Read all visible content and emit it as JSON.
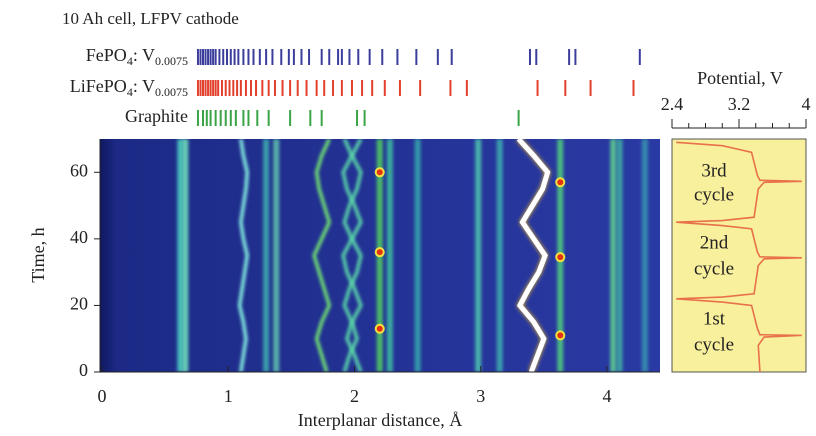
{
  "chart_data": [
    {
      "type": "heatmap",
      "title": "10 Ah cell, LFPV cathode",
      "xlabel": "Interplanar distance, Å",
      "ylabel": "Time, h",
      "xlim": [
        -0.016,
        4.42
      ],
      "ylim": [
        0,
        70
      ],
      "xticks": [
        0,
        1,
        2,
        3,
        4
      ],
      "yticks": [
        0,
        20,
        40,
        60
      ],
      "references": [
        {
          "label": [
            "FePO",
            "4",
            ": V",
            "0.0075"
          ],
          "color": "#3b3d9c",
          "values": [
            0.76,
            0.78,
            0.8,
            0.82,
            0.84,
            0.86,
            0.88,
            0.9,
            0.93,
            0.96,
            0.99,
            1.02,
            1.05,
            1.08,
            1.12,
            1.16,
            1.2,
            1.25,
            1.3,
            1.35,
            1.42,
            1.48,
            1.52,
            1.58,
            1.64,
            1.74,
            1.8,
            1.87,
            1.9,
            1.96,
            2.03,
            2.12,
            2.22,
            2.34,
            2.49,
            2.66,
            2.77,
            3.39,
            3.44,
            3.7,
            3.75,
            4.26
          ]
        },
        {
          "label": [
            "LiFePO",
            "4",
            ": V",
            "0.0075"
          ],
          "color": "#e2402c",
          "values": [
            0.76,
            0.78,
            0.8,
            0.82,
            0.84,
            0.86,
            0.88,
            0.9,
            0.92,
            0.95,
            0.98,
            1.01,
            1.04,
            1.07,
            1.1,
            1.14,
            1.18,
            1.22,
            1.27,
            1.32,
            1.37,
            1.43,
            1.49,
            1.55,
            1.62,
            1.7,
            1.76,
            1.83,
            1.9,
            1.98,
            2.06,
            2.14,
            2.24,
            2.36,
            2.52,
            2.76,
            2.89,
            3.45,
            3.67,
            3.87,
            4.21
          ]
        },
        {
          "label": [
            "Graphite"
          ],
          "color": "#3aa346",
          "values": [
            0.76,
            0.8,
            0.83,
            0.86,
            0.9,
            0.94,
            0.98,
            1.02,
            1.06,
            1.12,
            1.16,
            1.23,
            1.32,
            1.49,
            1.65,
            1.74,
            2.02,
            2.08,
            3.3
          ]
        }
      ],
      "static_lines": [
        {
          "x": 0.62,
          "color": "#4fd6c4"
        },
        {
          "x": 0.66,
          "color": "#74eabf"
        },
        {
          "x": 1.3,
          "color": "#3fb0b0"
        },
        {
          "x": 1.38,
          "color": "#62c9b0"
        },
        {
          "x": 2.2,
          "color": "#52d25e"
        },
        {
          "x": 2.28,
          "color": "#40c0a0"
        },
        {
          "x": 2.5,
          "color": "#38a8b0"
        },
        {
          "x": 2.98,
          "color": "#50c8b0"
        },
        {
          "x": 3.15,
          "color": "#40b0b0"
        },
        {
          "x": 3.63,
          "color": "#52d07e"
        },
        {
          "x": 4.05,
          "color": "#62d88e"
        },
        {
          "x": 4.1,
          "color": "#40b0a0"
        },
        {
          "x": 4.3,
          "color": "#3898b0"
        }
      ],
      "moving_lines": [
        {
          "color": "#ffffff",
          "y": [
            0,
            5,
            10,
            15,
            20,
            25,
            30,
            35,
            40,
            45,
            50,
            55,
            60,
            65,
            70
          ],
          "x": [
            3.4,
            3.45,
            3.5,
            3.42,
            3.31,
            3.38,
            3.46,
            3.51,
            3.42,
            3.33,
            3.41,
            3.49,
            3.53,
            3.42,
            3.3
          ]
        },
        {
          "color": "#86f0e2",
          "y": [
            0,
            5,
            10,
            15,
            20,
            25,
            30,
            35,
            40,
            45,
            50,
            55,
            60,
            65,
            70
          ],
          "x": [
            1.1,
            1.12,
            1.14,
            1.12,
            1.09,
            1.11,
            1.13,
            1.15,
            1.12,
            1.1,
            1.12,
            1.14,
            1.15,
            1.12,
            1.1
          ]
        },
        {
          "color": "#72e272",
          "y": [
            0,
            5,
            10,
            15,
            20,
            25,
            30,
            35,
            40,
            45,
            50,
            55,
            60,
            65,
            70
          ],
          "x": [
            1.78,
            1.74,
            1.7,
            1.74,
            1.8,
            1.76,
            1.72,
            1.68,
            1.74,
            1.8,
            1.76,
            1.72,
            1.7,
            1.74,
            1.8
          ]
        },
        {
          "color": "#5ad6a8",
          "y": [
            0,
            5,
            10,
            15,
            20,
            25,
            30,
            35,
            40,
            45,
            50,
            55,
            60,
            65,
            70
          ],
          "x": [
            1.92,
            1.96,
            2.02,
            1.98,
            1.92,
            1.96,
            2.02,
            2.05,
            1.98,
            1.92,
            1.96,
            2.02,
            2.05,
            1.98,
            1.92
          ]
        },
        {
          "color": "#5ad6a8",
          "y": [
            0,
            5,
            10,
            15,
            20,
            25,
            30,
            35,
            40,
            45,
            50,
            55,
            60,
            65,
            70
          ],
          "x": [
            2.05,
            2.0,
            1.94,
            1.98,
            2.05,
            2.0,
            1.94,
            1.91,
            1.98,
            2.05,
            2.0,
            1.94,
            1.91,
            1.98,
            2.05
          ]
        }
      ],
      "spots": {
        "color": "#e23212",
        "x": [
          3.63,
          3.63,
          3.63,
          2.2,
          2.2,
          2.2
        ],
        "y": [
          11,
          34.5,
          57,
          13,
          36,
          60
        ]
      }
    },
    {
      "type": "line",
      "xlabel": "Potential, V",
      "xlim": [
        2.4,
        4
      ],
      "ylim": [
        0,
        70
      ],
      "xticks": [
        2.4,
        3.2,
        4
      ],
      "xminorticks": [
        2.6,
        2.8,
        3,
        3.4,
        3.6,
        3.8
      ],
      "color": "#e8704a",
      "annotations": [
        [
          "3rd",
          "cycle"
        ],
        [
          "2nd",
          "cycle"
        ],
        [
          "1st",
          "cycle"
        ]
      ],
      "y": [
        0,
        8,
        10.5,
        11,
        11.2,
        13,
        20,
        21,
        22,
        22.5,
        23.5,
        32,
        34,
        34.3,
        34.6,
        36,
        43,
        44,
        45,
        45.5,
        46.5,
        55,
        57,
        57.3,
        57.6,
        59,
        66,
        68,
        69
      ],
      "x": [
        3.45,
        3.43,
        3.5,
        3.95,
        3.45,
        3.42,
        3.35,
        3.0,
        2.45,
        3.0,
        3.38,
        3.43,
        3.5,
        3.95,
        3.45,
        3.42,
        3.35,
        3.0,
        2.45,
        3.0,
        3.38,
        3.43,
        3.5,
        3.95,
        3.45,
        3.42,
        3.35,
        3.0,
        2.45
      ]
    }
  ]
}
